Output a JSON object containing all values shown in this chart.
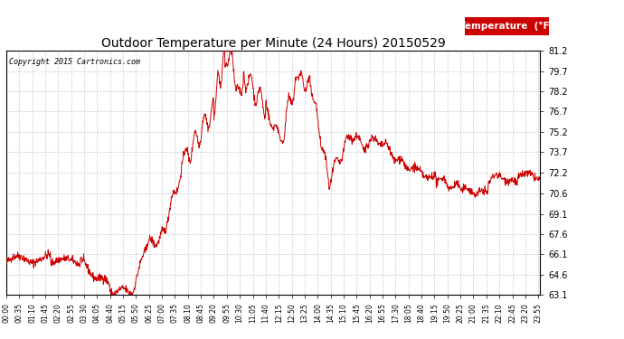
{
  "title": "Outdoor Temperature per Minute (24 Hours) 20150529",
  "copyright": "Copyright 2015 Cartronics.com",
  "legend_label": "Temperature  (°F)",
  "line_color": "#cc0000",
  "background_color": "#ffffff",
  "plot_bg_color": "#ffffff",
  "ylim": [
    63.1,
    81.2
  ],
  "yticks": [
    63.1,
    64.6,
    66.1,
    67.6,
    69.1,
    70.6,
    72.2,
    73.7,
    75.2,
    76.7,
    78.2,
    79.7,
    81.2
  ],
  "xtick_interval_minutes": 35,
  "total_minutes": 1440,
  "grid_color": "#cccccc",
  "legend_bg": "#cc0000",
  "legend_text_color": "#ffffff"
}
